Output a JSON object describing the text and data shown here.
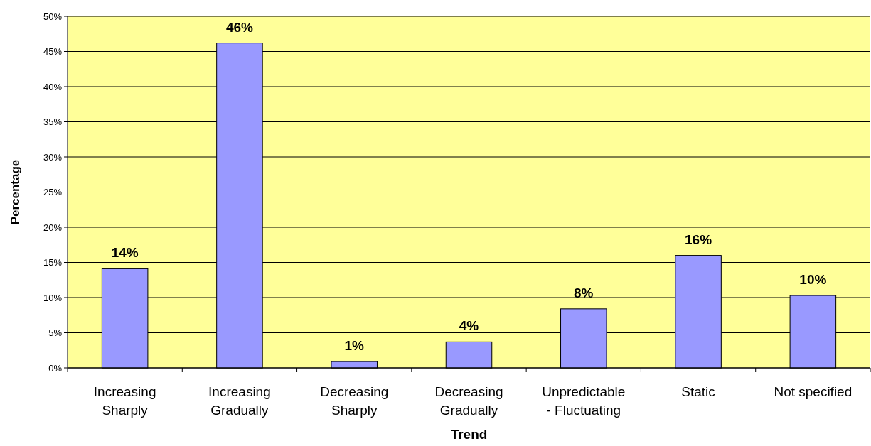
{
  "chart_data": {
    "type": "bar",
    "xlabel": "Trend",
    "ylabel": "Percentage",
    "categories": [
      "Increasing Sharply",
      "Increasing Gradually",
      "Decreasing Sharply",
      "Decreasing Gradually",
      "Unpredictable - Fluctuating",
      "Static",
      "Not specified"
    ],
    "values": [
      14.1,
      46.2,
      0.9,
      3.7,
      8.4,
      16.0,
      10.3
    ],
    "color": "#9999ff",
    "value_labels": [
      "14%",
      "46%",
      "1%",
      "4%",
      "8%",
      "16%",
      "10%"
    ],
    "ylim": [
      0,
      50
    ],
    "yticks": [
      {
        "value": 0,
        "label": "0%"
      },
      {
        "value": 5,
        "label": "5%"
      },
      {
        "value": 10,
        "label": "10%"
      },
      {
        "value": 15,
        "label": "15%"
      },
      {
        "value": 20,
        "label": "20%"
      },
      {
        "value": 25,
        "label": "25%"
      },
      {
        "value": 30,
        "label": "30%"
      },
      {
        "value": 35,
        "label": "35%"
      },
      {
        "value": 40,
        "label": "40%"
      },
      {
        "value": 45,
        "label": "45%"
      },
      {
        "value": 50,
        "label": "50%"
      }
    ],
    "grid": "y"
  }
}
